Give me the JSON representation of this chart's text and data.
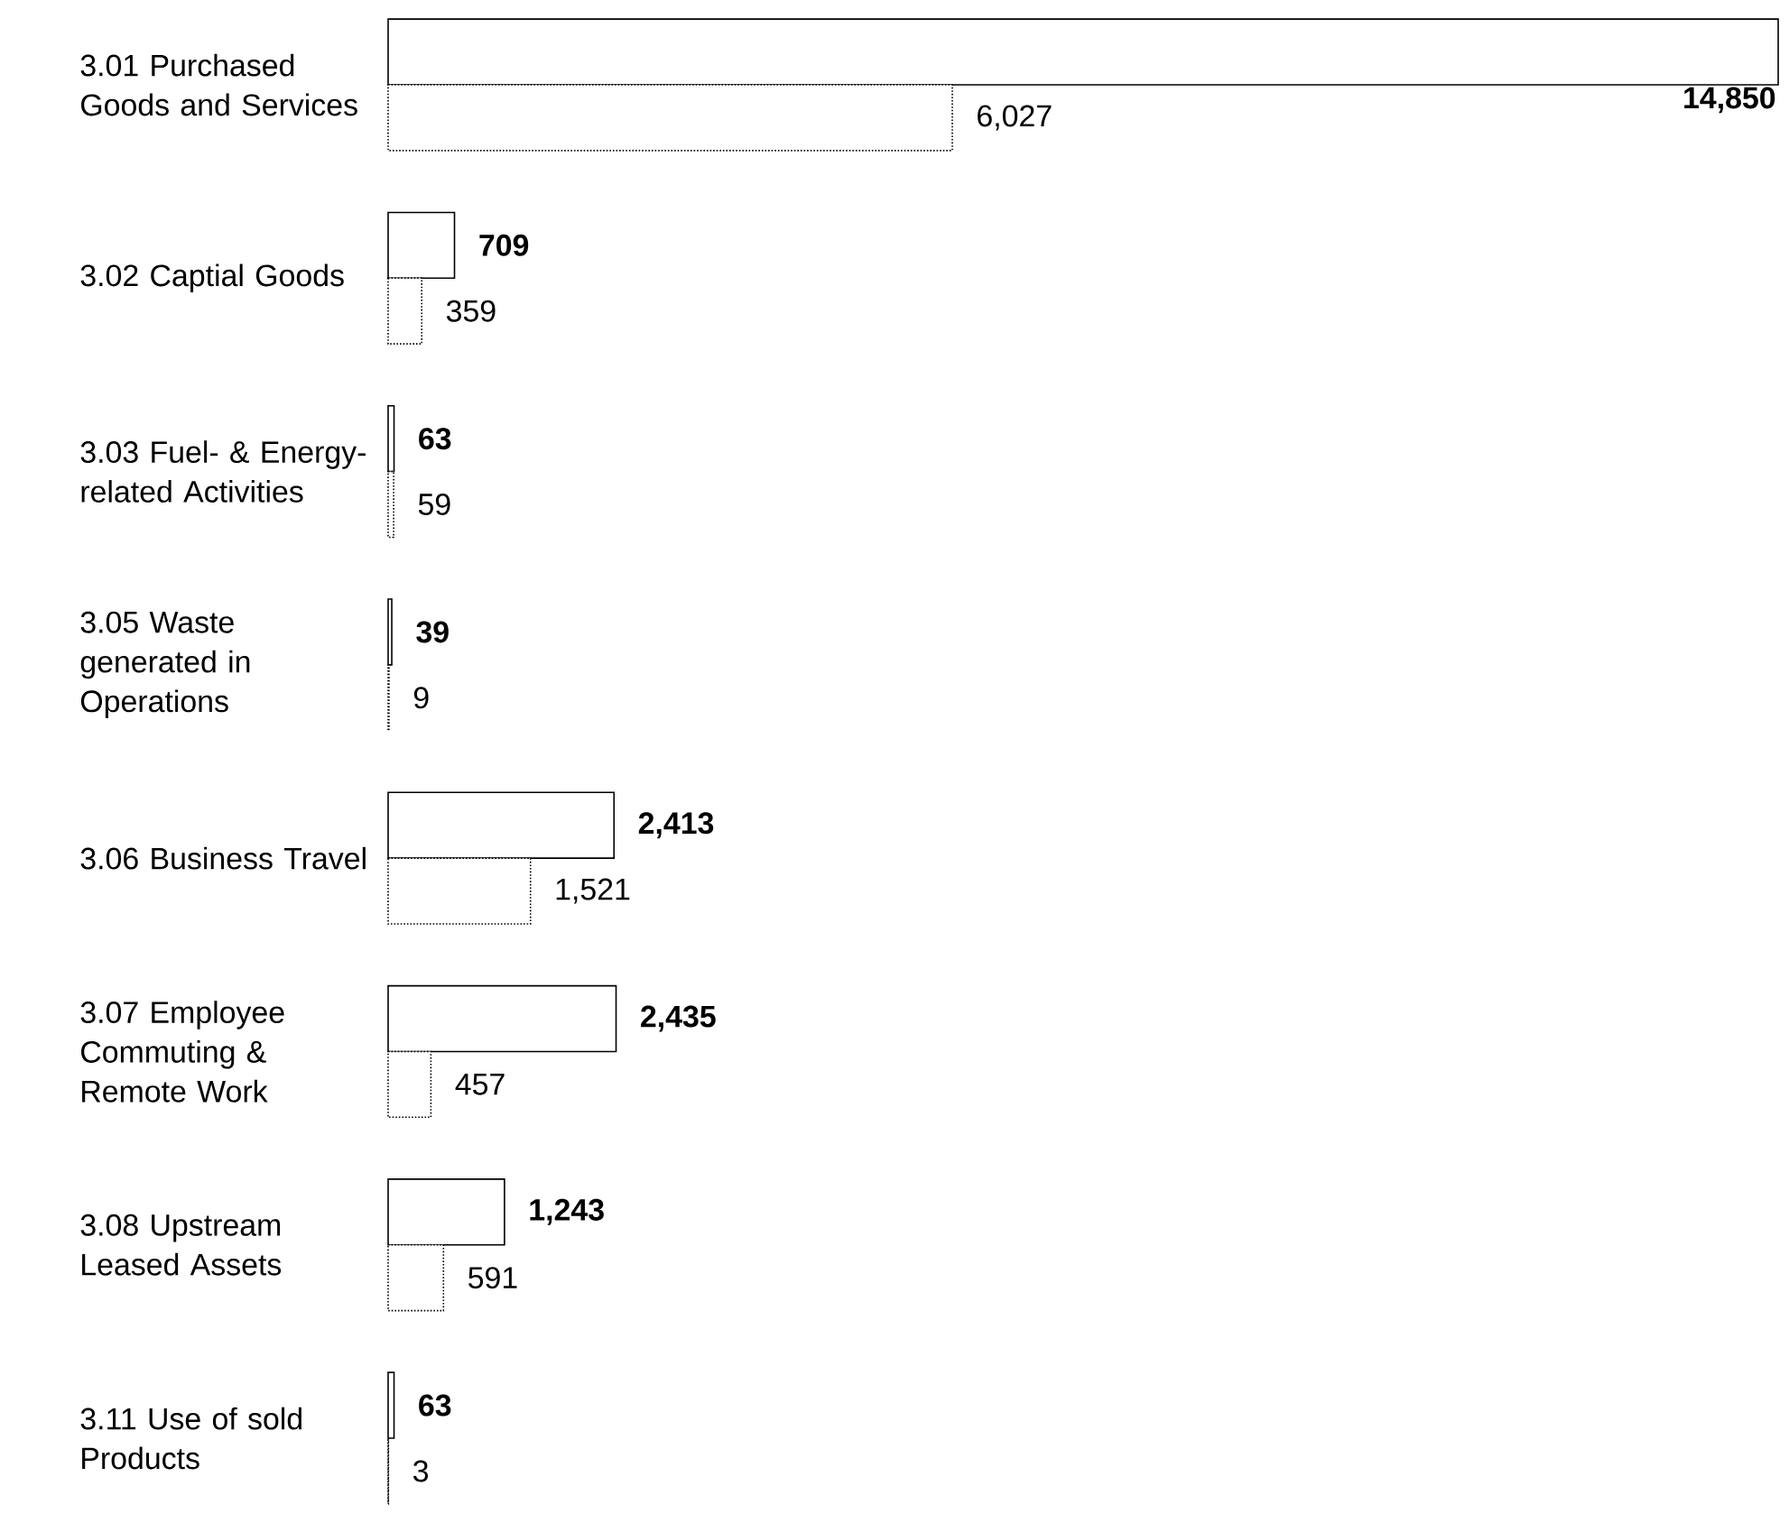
{
  "chart_data": {
    "type": "bar",
    "orientation": "horizontal",
    "categories": [
      "3.01 Purchased Goods and Services",
      "3.02 Captial Goods",
      "3.03 Fuel- & Energy-related Activities",
      "3.05 Waste generated in Operations",
      "3.06 Business Travel",
      "3.07 Employee Commuting & Remote Work",
      "3.08 Upstream Leased Assets",
      "3.11 Use of sold Products"
    ],
    "series": [
      {
        "color": "#000000",
        "line_style": "solid",
        "values": [
          14850,
          709,
          63,
          39,
          2413,
          2435,
          1243,
          63
        ],
        "value_labels": [
          "14,850",
          "709",
          "63",
          "39",
          "2,413",
          "2,435",
          "1,243",
          "63"
        ]
      },
      {
        "color": "#000000",
        "line_style": "dotted",
        "values": [
          6027,
          359,
          59,
          9,
          1521,
          457,
          591,
          3
        ],
        "value_labels": [
          "6,027",
          "359",
          "59",
          "9",
          "1,521",
          "457",
          "591",
          "3"
        ]
      }
    ]
  }
}
